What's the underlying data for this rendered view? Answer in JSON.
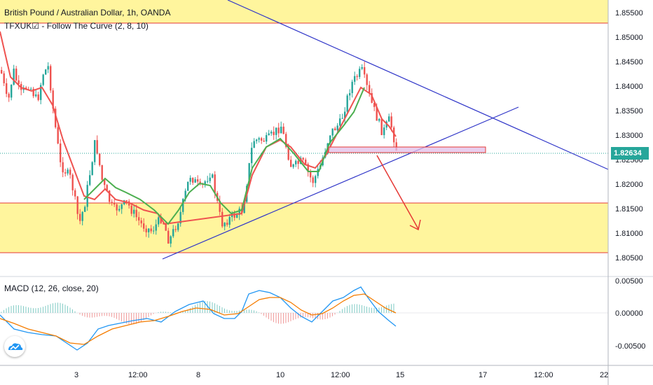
{
  "header": {
    "title": "British Pound / Australian Dollar, 1h, OANDA",
    "indicator": "TFXUK☑ - Follow The Curve (2, 8, 10)"
  },
  "macd": {
    "label": "MACD (12, 26, close, 20)"
  },
  "price_axis": {
    "ticks": [
      "1.85500",
      "1.85000",
      "1.84500",
      "1.84000",
      "1.83500",
      "1.83000",
      "1.82500",
      "1.82000",
      "1.81500",
      "1.81000",
      "1.80500"
    ],
    "current_price": "1.82634"
  },
  "macd_axis": {
    "ticks": [
      "0.00500",
      "0.00000",
      "-0.00500"
    ]
  },
  "time_axis": {
    "ticks": [
      "3",
      "12:00",
      "8",
      "10",
      "12:00",
      "15",
      "17",
      "12:00",
      "22"
    ]
  },
  "colors": {
    "up_candle": "#26a69a",
    "down_candle": "#ef5350",
    "zone_fill": "#fff59d",
    "zone_border": "#e53935",
    "trendline": "#2f35c8",
    "price_tag": "#26a69a",
    "macd_line": "#2196f3",
    "signal_line": "#f57c00"
  },
  "icons": {
    "logo": "tradingview-logo-icon"
  }
}
